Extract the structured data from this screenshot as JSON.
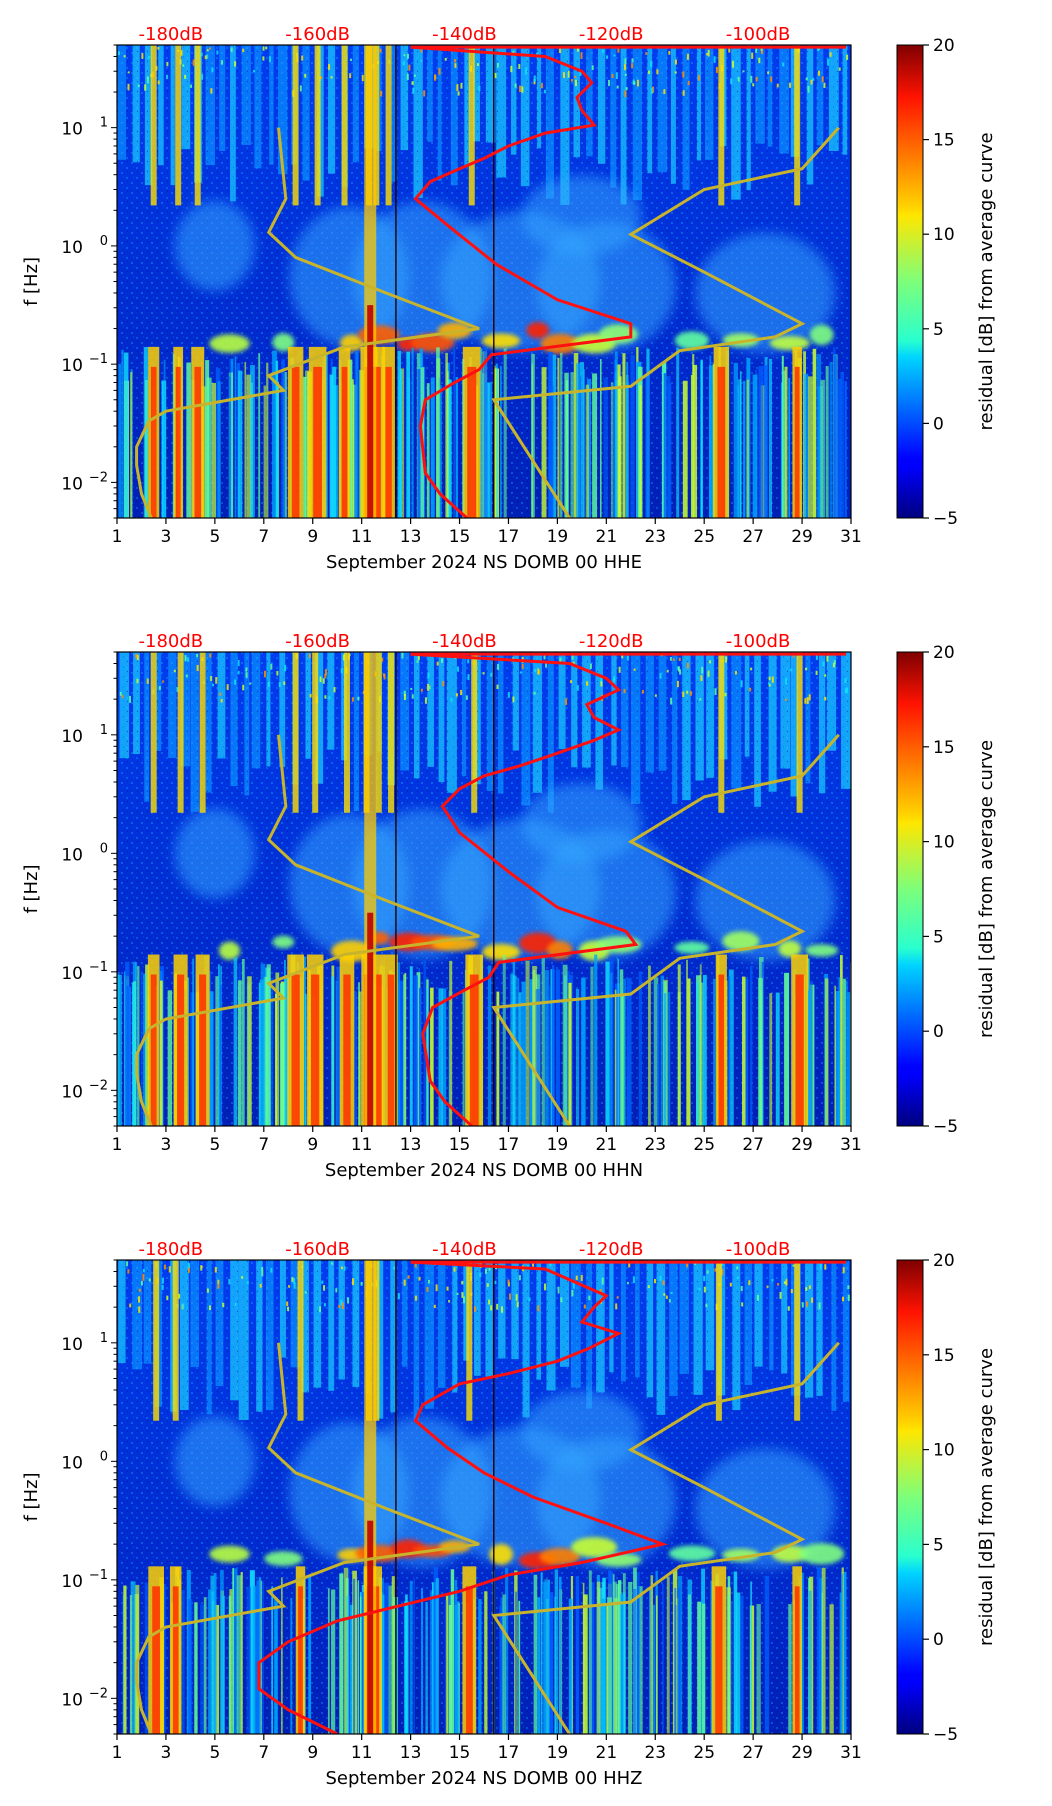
{
  "chart_data": [
    {
      "type": "heatmap",
      "xlabel": "September 2024 NS DOMB 00 HHE",
      "ylabel": "f [Hz]",
      "xlim": [
        1,
        31
      ],
      "ylim": [
        0.005,
        50
      ],
      "yscale": "log",
      "x_ticks": [
        "1",
        "3",
        "5",
        "7",
        "9",
        "11",
        "13",
        "15",
        "17",
        "19",
        "21",
        "23",
        "25",
        "27",
        "29",
        "31"
      ],
      "y_ticks": [
        {
          "value": 0.01,
          "base": "10",
          "exp": "−2"
        },
        {
          "value": 0.1,
          "base": "10",
          "exp": "−1"
        },
        {
          "value": 1,
          "base": "10",
          "exp": "0"
        },
        {
          "value": 10,
          "base": "10",
          "exp": "1"
        }
      ],
      "db_scale_labels": [
        "-180dB",
        "-160dB",
        "-140dB",
        "-120dB",
        "-100dB"
      ],
      "colorbar": {
        "label": "residual [dB] from average curve",
        "min": -5,
        "max": 20,
        "ticks": [
          "20",
          "15",
          "10",
          "5",
          "0",
          "−5"
        ]
      },
      "hot_days": [
        2.5,
        3.5,
        4.3,
        8.3,
        9.2,
        10.3,
        11.3,
        11.6,
        12.1,
        15.5,
        25.7,
        28.8
      ],
      "nlnm_curve": [
        [
          2.4,
          0.005
        ],
        [
          2.0,
          0.008
        ],
        [
          1.8,
          0.014
        ],
        [
          1.8,
          0.02
        ],
        [
          2.3,
          0.033
        ],
        [
          3.0,
          0.04
        ],
        [
          7.8,
          0.06
        ],
        [
          7.2,
          0.08
        ],
        [
          10.3,
          0.14
        ],
        [
          15.8,
          0.2
        ],
        [
          12.0,
          0.4
        ],
        [
          8.3,
          0.8
        ],
        [
          7.2,
          1.3
        ],
        [
          7.9,
          2.5
        ],
        [
          7.6,
          10
        ]
      ],
      "nhnm_curve": [
        [
          19.5,
          0.005
        ],
        [
          16.4,
          0.05
        ],
        [
          22.0,
          0.065
        ],
        [
          24.0,
          0.13
        ],
        [
          27.9,
          0.17
        ],
        [
          29.0,
          0.22
        ],
        [
          25.0,
          0.6
        ],
        [
          22.0,
          1.25
        ],
        [
          25.0,
          3.0
        ],
        [
          29.0,
          4.5
        ],
        [
          30.5,
          10
        ]
      ],
      "median_curve": [
        [
          15.3,
          0.005
        ],
        [
          14.2,
          0.008
        ],
        [
          13.6,
          0.012
        ],
        [
          13.4,
          0.03
        ],
        [
          13.6,
          0.05
        ],
        [
          14.8,
          0.07
        ],
        [
          15.8,
          0.09
        ],
        [
          16.3,
          0.12
        ],
        [
          22.0,
          0.17
        ],
        [
          22.0,
          0.22
        ],
        [
          19.0,
          0.35
        ],
        [
          16.5,
          0.7
        ],
        [
          14.5,
          1.5
        ],
        [
          13.2,
          2.5
        ],
        [
          13.8,
          3.5
        ],
        [
          15.0,
          4.5
        ],
        [
          16.0,
          5.5
        ],
        [
          17.0,
          7.0
        ],
        [
          18.5,
          9.0
        ],
        [
          20.5,
          10.5
        ],
        [
          20.0,
          14.0
        ],
        [
          19.8,
          18.0
        ],
        [
          20.4,
          24.0
        ],
        [
          20.0,
          30.0
        ],
        [
          18.5,
          40.0
        ],
        [
          13.0,
          48.0
        ]
      ],
      "tail_y": 0.14
    },
    {
      "type": "heatmap",
      "xlabel": "September 2024 NS DOMB 00 HHN",
      "ylabel": "f [Hz]",
      "xlim": [
        1,
        31
      ],
      "ylim": [
        0.005,
        50
      ],
      "yscale": "log",
      "x_ticks": [
        "1",
        "3",
        "5",
        "7",
        "9",
        "11",
        "13",
        "15",
        "17",
        "19",
        "21",
        "23",
        "25",
        "27",
        "29",
        "31"
      ],
      "y_ticks": [
        {
          "value": 0.01,
          "base": "10",
          "exp": "−2"
        },
        {
          "value": 0.1,
          "base": "10",
          "exp": "−1"
        },
        {
          "value": 1,
          "base": "10",
          "exp": "0"
        },
        {
          "value": 10,
          "base": "10",
          "exp": "1"
        }
      ],
      "db_scale_labels": [
        "-180dB",
        "-160dB",
        "-140dB",
        "-120dB",
        "-100dB"
      ],
      "colorbar": {
        "label": "residual [dB] from average curve",
        "min": -5,
        "max": 20,
        "ticks": [
          "20",
          "15",
          "10",
          "5",
          "0",
          "−5"
        ]
      },
      "hot_days": [
        2.5,
        3.6,
        4.5,
        8.3,
        9.1,
        10.4,
        11.2,
        11.7,
        12.2,
        15.6,
        25.7,
        28.9
      ],
      "nlnm_curve": [
        [
          2.4,
          0.005
        ],
        [
          2.0,
          0.008
        ],
        [
          1.8,
          0.014
        ],
        [
          1.8,
          0.02
        ],
        [
          2.3,
          0.033
        ],
        [
          3.0,
          0.04
        ],
        [
          7.8,
          0.06
        ],
        [
          7.2,
          0.08
        ],
        [
          10.3,
          0.14
        ],
        [
          15.8,
          0.2
        ],
        [
          12.0,
          0.4
        ],
        [
          8.3,
          0.8
        ],
        [
          7.2,
          1.3
        ],
        [
          7.9,
          2.5
        ],
        [
          7.6,
          10
        ]
      ],
      "nhnm_curve": [
        [
          19.5,
          0.005
        ],
        [
          16.4,
          0.05
        ],
        [
          22.0,
          0.065
        ],
        [
          24.0,
          0.13
        ],
        [
          27.9,
          0.17
        ],
        [
          29.0,
          0.22
        ],
        [
          25.0,
          0.6
        ],
        [
          22.0,
          1.25
        ],
        [
          25.0,
          3.0
        ],
        [
          29.0,
          4.5
        ],
        [
          30.5,
          10
        ]
      ],
      "median_curve": [
        [
          15.5,
          0.005
        ],
        [
          14.4,
          0.008
        ],
        [
          13.8,
          0.012
        ],
        [
          13.5,
          0.03
        ],
        [
          13.9,
          0.05
        ],
        [
          15.2,
          0.07
        ],
        [
          16.2,
          0.09
        ],
        [
          16.6,
          0.12
        ],
        [
          22.2,
          0.17
        ],
        [
          21.8,
          0.22
        ],
        [
          19.0,
          0.35
        ],
        [
          17.0,
          0.7
        ],
        [
          15.0,
          1.5
        ],
        [
          14.3,
          2.5
        ],
        [
          15.0,
          3.5
        ],
        [
          16.0,
          4.5
        ],
        [
          17.5,
          5.5
        ],
        [
          19.0,
          7.0
        ],
        [
          20.5,
          9.0
        ],
        [
          21.5,
          11.0
        ],
        [
          20.5,
          14.0
        ],
        [
          20.2,
          18.0
        ],
        [
          21.5,
          24.0
        ],
        [
          21.0,
          30.0
        ],
        [
          19.5,
          40.0
        ],
        [
          13.0,
          48.0
        ]
      ],
      "tail_y": 0.14
    },
    {
      "type": "heatmap",
      "xlabel": "September 2024 NS DOMB 00 HHZ",
      "ylabel": "f [Hz]",
      "xlim": [
        1,
        31
      ],
      "ylim": [
        0.005,
        50
      ],
      "yscale": "log",
      "x_ticks": [
        "1",
        "3",
        "5",
        "7",
        "9",
        "11",
        "13",
        "15",
        "17",
        "19",
        "21",
        "23",
        "25",
        "27",
        "29",
        "31"
      ],
      "y_ticks": [
        {
          "value": 0.01,
          "base": "10",
          "exp": "−2"
        },
        {
          "value": 0.1,
          "base": "10",
          "exp": "−1"
        },
        {
          "value": 1,
          "base": "10",
          "exp": "0"
        },
        {
          "value": 10,
          "base": "10",
          "exp": "1"
        }
      ],
      "db_scale_labels": [
        "-180dB",
        "-160dB",
        "-140dB",
        "-120dB",
        "-100dB"
      ],
      "colorbar": {
        "label": "residual [dB] from average curve",
        "min": -5,
        "max": 20,
        "ticks": [
          "20",
          "15",
          "10",
          "5",
          "0",
          "−5"
        ]
      },
      "hot_days": [
        2.6,
        3.4,
        8.5,
        11.3,
        11.6,
        15.4,
        25.6,
        28.8
      ],
      "nlnm_curve": [
        [
          2.4,
          0.005
        ],
        [
          2.0,
          0.008
        ],
        [
          1.8,
          0.014
        ],
        [
          1.8,
          0.02
        ],
        [
          2.3,
          0.033
        ],
        [
          3.0,
          0.04
        ],
        [
          7.8,
          0.06
        ],
        [
          7.2,
          0.08
        ],
        [
          10.3,
          0.14
        ],
        [
          15.8,
          0.2
        ],
        [
          12.0,
          0.4
        ],
        [
          8.3,
          0.8
        ],
        [
          7.2,
          1.3
        ],
        [
          7.9,
          2.5
        ],
        [
          7.6,
          10
        ]
      ],
      "nhnm_curve": [
        [
          19.5,
          0.005
        ],
        [
          16.4,
          0.05
        ],
        [
          22.0,
          0.065
        ],
        [
          24.0,
          0.13
        ],
        [
          27.9,
          0.17
        ],
        [
          29.0,
          0.22
        ],
        [
          25.0,
          0.6
        ],
        [
          22.0,
          1.25
        ],
        [
          25.0,
          3.0
        ],
        [
          29.0,
          4.5
        ],
        [
          30.5,
          10
        ]
      ],
      "median_curve": [
        [
          10.0,
          0.005
        ],
        [
          8.0,
          0.008
        ],
        [
          6.8,
          0.012
        ],
        [
          6.8,
          0.02
        ],
        [
          8.0,
          0.03
        ],
        [
          10.0,
          0.045
        ],
        [
          12.5,
          0.06
        ],
        [
          15.0,
          0.08
        ],
        [
          17.0,
          0.11
        ],
        [
          20.0,
          0.14
        ],
        [
          23.3,
          0.2
        ],
        [
          21.0,
          0.3
        ],
        [
          18.0,
          0.5
        ],
        [
          16.0,
          0.8
        ],
        [
          14.5,
          1.3
        ],
        [
          13.2,
          2.2
        ],
        [
          13.5,
          3.0
        ],
        [
          15.0,
          4.5
        ],
        [
          17.0,
          5.5
        ],
        [
          19.0,
          7.0
        ],
        [
          20.3,
          9.0
        ],
        [
          21.5,
          12.0
        ],
        [
          20.0,
          15.0
        ],
        [
          20.5,
          20.0
        ],
        [
          21.0,
          25.0
        ],
        [
          19.8,
          32.0
        ],
        [
          18.5,
          42.0
        ],
        [
          13.0,
          48.0
        ]
      ],
      "tail_y": 0.13
    }
  ]
}
